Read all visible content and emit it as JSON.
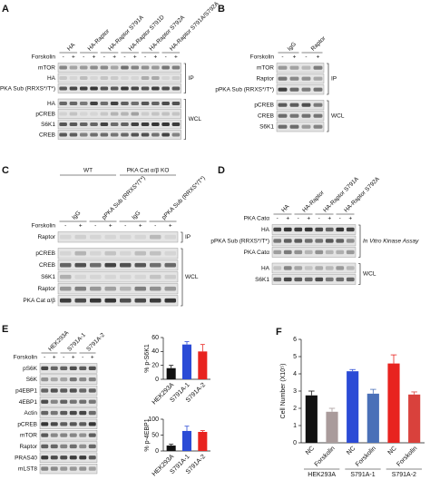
{
  "panels": [
    {
      "label": "A",
      "treatment": "Forskolin",
      "signs": [
        "-",
        "+",
        "-",
        "+",
        "-",
        "+",
        "-",
        "+",
        "-",
        "+",
        "-",
        "+"
      ],
      "headers": [
        "HA",
        "HA-Raptor",
        "HA-Raptor S791A",
        "HA-Raptor S791D",
        "HA-Raptor S792A",
        "HA-Raptor S791A/S792A"
      ],
      "groups": [
        {
          "label": "IP",
          "rows": [
            "mTOR",
            "HA",
            "pPKA Sub (RRXS*/T*)"
          ]
        },
        {
          "label": "WCL",
          "rows": [
            "HA",
            "pCREB",
            "S6K1",
            "CREB"
          ]
        }
      ]
    },
    {
      "label": "B",
      "treatment": "Forskolin",
      "signs": [
        "-",
        "+",
        "-",
        "+"
      ],
      "headers": [
        "IgG",
        "Raptor"
      ],
      "groups": [
        {
          "label": "IP",
          "rows": [
            "mTOR",
            "Raptor",
            "pPKA Sub (RRXS*/T*)"
          ]
        },
        {
          "label": "WCL",
          "rows": [
            "pCREB",
            "CREB",
            "S6K1"
          ]
        }
      ]
    },
    {
      "label": "C",
      "treatment": "Forskolin",
      "signs": [
        "-",
        "+",
        "-",
        "+",
        "-",
        "+",
        "-",
        "+"
      ],
      "top_headers": [
        "WT",
        "PKA Cat α/β KO"
      ],
      "headers": [
        "IgG",
        "pPKA Sub (RRXS*/T*)",
        "IgG",
        "pPKA Sub (RRXS*/T*)"
      ],
      "groups": [
        {
          "label": "IP",
          "rows": [
            "Raptor"
          ]
        },
        {
          "label": "WCL",
          "rows": [
            "pCREB",
            "CREB",
            "S6K1",
            "Raptor",
            "PKA Cat α/β"
          ]
        }
      ]
    },
    {
      "label": "D",
      "treatment": "PKA Catα",
      "signs": [
        "-",
        "+",
        "-",
        "+",
        "-",
        "+",
        "-",
        "+"
      ],
      "headers": [
        "HA",
        "HA-Raptor",
        "HA-Raptor S791A",
        "HA-Raptor S792A"
      ],
      "groups": [
        {
          "label": "In Vitro Kinase Assay",
          "rows": [
            "HA",
            "pPKA Sub (RRXS*/T*)",
            "PKA Catα"
          ]
        },
        {
          "label": "WCL",
          "rows": [
            "HA",
            "S6K1"
          ]
        }
      ]
    },
    {
      "label": "E",
      "treatment": "Forskolin",
      "signs": [
        "-",
        "+",
        "-",
        "+",
        "-",
        "+"
      ],
      "headers": [
        "HEK293A",
        "S791A-1",
        "S791A-2"
      ],
      "groups": [
        {
          "rows": [
            "pS6K",
            "S6K",
            "p4EBP1",
            "4EBP1",
            "Actin",
            "pCREB",
            "mTOR",
            "Raptor",
            "PRAS40",
            "mLST8"
          ]
        }
      ]
    }
  ],
  "chart_data": [
    {
      "type": "bar",
      "y_label": "% p-S6K1",
      "categories": [
        "HEK293A",
        "S791A-1",
        "S791A-2"
      ],
      "values": [
        16,
        50,
        40
      ],
      "errors": [
        4,
        4,
        10
      ],
      "colors": [
        "#111111",
        "#2b4bd6",
        "#e8231f"
      ],
      "ylim": [
        0,
        60
      ],
      "yticks": [
        0,
        20,
        40,
        60
      ]
    },
    {
      "type": "bar",
      "y_label": "% p-4EBP1",
      "categories": [
        "HEK293A",
        "S791A-1",
        "S791A-2"
      ],
      "values": [
        17,
        63,
        60
      ],
      "errors": [
        4,
        15,
        4
      ],
      "colors": [
        "#111111",
        "#2b4bd6",
        "#e8231f"
      ],
      "ylim": [
        0,
        100
      ],
      "yticks": [
        0,
        50,
        100
      ]
    },
    {
      "type": "bar",
      "panel_label": "F",
      "y_label": "Cell Number (X10⁵)",
      "categories": [
        "NC",
        "Forskolin",
        "NC",
        "Forskolin",
        "NC",
        "Forskolin"
      ],
      "groups": [
        "HEK293A",
        "S791A-1",
        "S791A-2"
      ],
      "values": [
        2.75,
        1.8,
        4.15,
        2.85,
        4.6,
        2.8
      ],
      "errors": [
        0.25,
        0.2,
        0.1,
        0.25,
        0.5,
        0.15
      ],
      "colors": [
        "#111111",
        "#a99b9b",
        "#2b4bd6",
        "#4a70b8",
        "#e8231f",
        "#d9413c"
      ],
      "ylim": [
        0,
        6
      ],
      "yticks": [
        0,
        1,
        2,
        3,
        4,
        5,
        6
      ]
    }
  ]
}
